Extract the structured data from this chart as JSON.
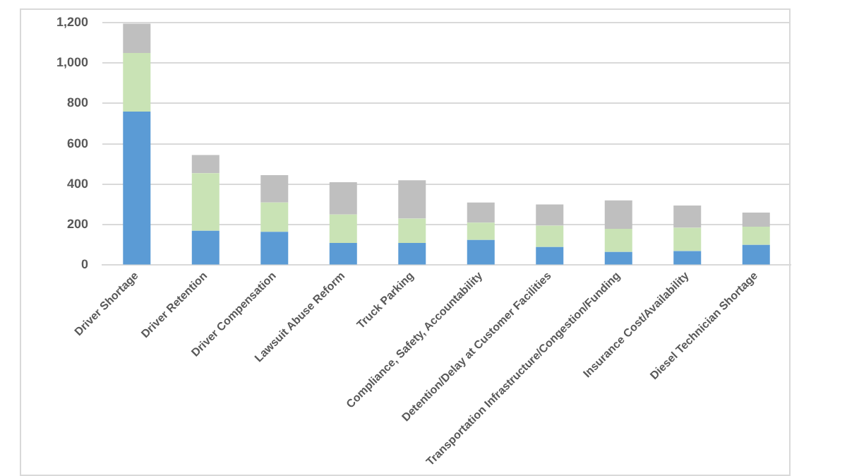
{
  "chart_data": {
    "type": "bar",
    "stacked": true,
    "categories": [
      "Driver Shortage",
      "Driver Retention",
      "Driver Compensation",
      "Lawsuit Abuse Reform",
      "Truck Parking",
      "Compliance, Safety, Accountability",
      "Detention/Delay at Customer Facilities",
      "Transportation Infrastructure/Congestion/Funding",
      "Insurance Cost/Availability",
      "Diesel Technician Shortage"
    ],
    "series": [
      {
        "color": "#5b9bd5",
        "values": [
          760,
          170,
          165,
          110,
          110,
          125,
          90,
          65,
          70,
          100
        ]
      },
      {
        "color": "#c9e3b5",
        "values": [
          290,
          285,
          145,
          140,
          120,
          85,
          105,
          115,
          115,
          90
        ]
      },
      {
        "color": "#bfbfbf",
        "values": [
          145,
          90,
          135,
          160,
          190,
          100,
          105,
          140,
          110,
          70
        ]
      }
    ],
    "ylim": [
      0,
      1200
    ],
    "yticks": [
      {
        "value": 0,
        "label": "0"
      },
      {
        "value": 200,
        "label": "200"
      },
      {
        "value": 400,
        "label": "400"
      },
      {
        "value": 600,
        "label": "600"
      },
      {
        "value": 800,
        "label": "800"
      },
      {
        "value": 1000,
        "label": "1,000"
      },
      {
        "value": 1200,
        "label": "1,200"
      }
    ],
    "grid": "y",
    "legend": false
  }
}
